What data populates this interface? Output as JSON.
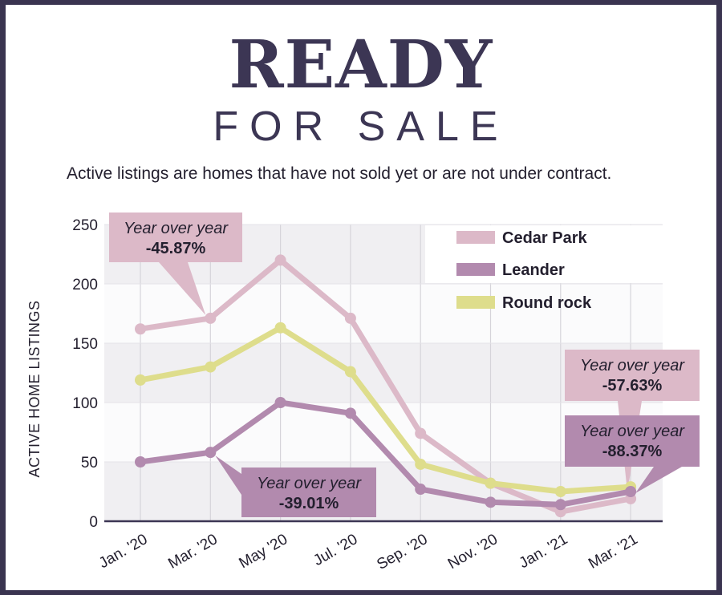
{
  "title": "READY",
  "subtitle_title": "FOR SALE",
  "description": "Active listings are homes that have not sold yet or are not under contract.",
  "chart_data": {
    "type": "line",
    "ylabel": "ACTIVE HOME LISTINGS",
    "ylim": [
      0,
      250
    ],
    "yticks": [
      "0",
      "50",
      "100",
      "150",
      "200",
      "250"
    ],
    "categories": [
      "Jan. '20",
      "Mar. '20",
      "May '20",
      "Jul. '20",
      "Sep. '20",
      "Nov. '20",
      "Jan. '21",
      "Mar. '21"
    ],
    "grid": true,
    "legend_position": "top-right",
    "series": [
      {
        "name": "Cedar Park",
        "color": "#dcb9c8",
        "values": [
          162,
          171,
          220,
          171,
          74,
          32,
          8,
          19
        ]
      },
      {
        "name": "Round rock",
        "color": "#dedd8c",
        "values": [
          119,
          130,
          163,
          126,
          48,
          32,
          25,
          29
        ]
      },
      {
        "name": "Leander",
        "color": "#b28aae",
        "values": [
          50,
          58,
          100,
          91,
          27,
          16,
          14,
          25
        ]
      }
    ],
    "annotations": [
      {
        "line1": "Year over year",
        "line2": "-45.87%",
        "color": "#dcb9c8"
      },
      {
        "line1": "Year over year",
        "line2": "-39.01%",
        "color": "#b28aae"
      },
      {
        "line1": "Year over year",
        "line2": "-57.63%",
        "color": "#dcb9c8"
      },
      {
        "line1": "Year over year",
        "line2": "-88.37%",
        "color": "#b28aae"
      }
    ]
  }
}
